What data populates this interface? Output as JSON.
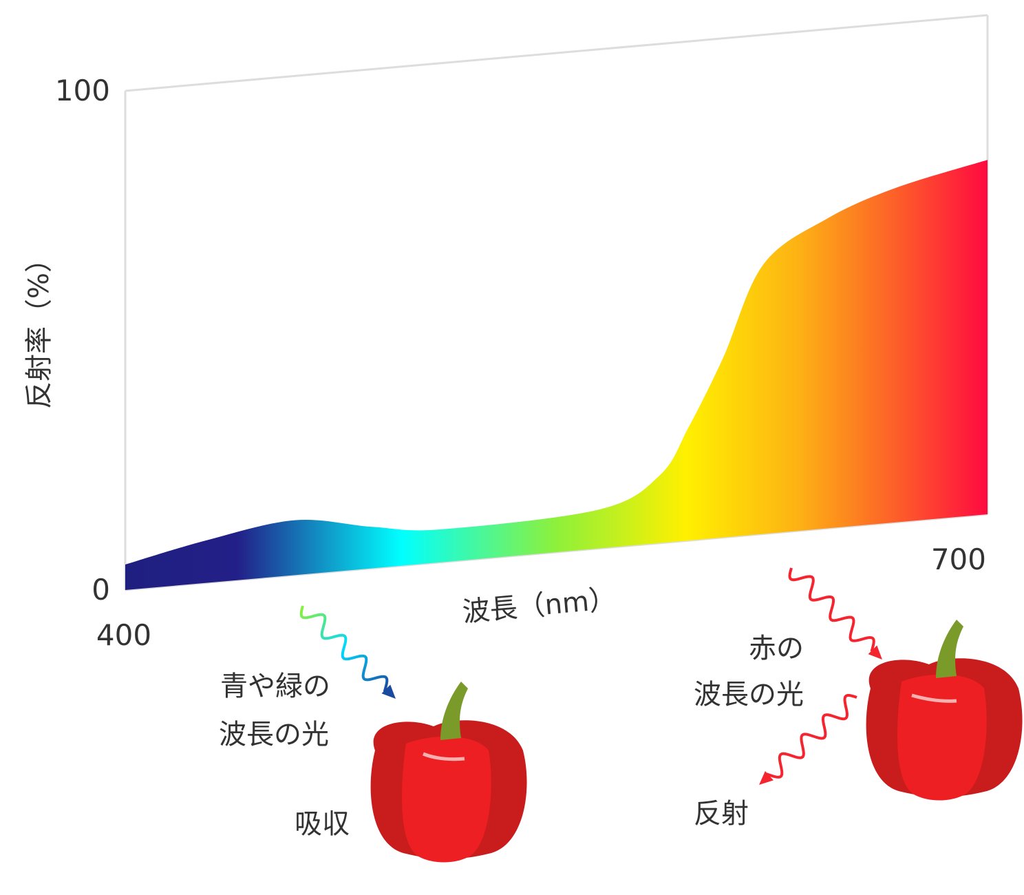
{
  "chart_data": {
    "type": "area",
    "x": [
      400,
      428,
      459,
      486,
      510,
      565,
      586,
      596,
      608,
      622,
      644,
      668,
      700
    ],
    "values": [
      5.1,
      8.5,
      11,
      8.3,
      6.6,
      7.8,
      13.6,
      22.7,
      36,
      54,
      62,
      67,
      71
    ],
    "xlim": [
      400,
      700
    ],
    "ylim": [
      0,
      100
    ],
    "xticks": [
      400,
      700
    ],
    "yticks": [
      0,
      100
    ],
    "xlabel": "波長（nm）",
    "ylabel": "反射率（%）",
    "annotations": [
      "青や緑の",
      "波長の光",
      "吸収",
      "赤の",
      "波長の光",
      "反射"
    ]
  }
}
